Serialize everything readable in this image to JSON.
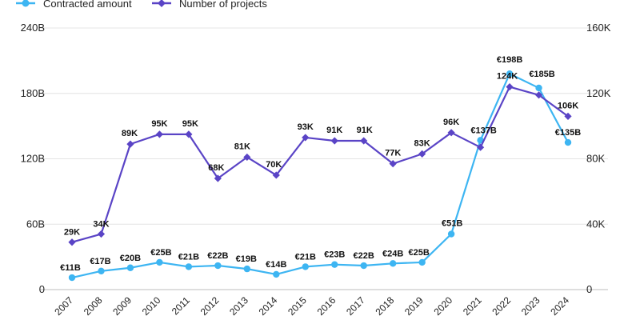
{
  "chart_data": {
    "type": "line",
    "title": "",
    "xlabel": "",
    "x": [
      "2007",
      "2008",
      "2009",
      "2010",
      "2011",
      "2012",
      "2013",
      "2014",
      "2015",
      "2016",
      "2017",
      "2018",
      "2019",
      "2020",
      "2021",
      "2022",
      "2023",
      "2024"
    ],
    "left_axis": {
      "min": 0,
      "max": 240,
      "ticks": [
        "0",
        "60B",
        "120B",
        "180B",
        "240B"
      ]
    },
    "right_axis": {
      "min": 0,
      "max": 160,
      "ticks": [
        "0",
        "40K",
        "80K",
        "120K",
        "160K"
      ]
    },
    "grid": true,
    "legend_position": "top-left",
    "series": [
      {
        "name": "Contracted amount",
        "axis": "left",
        "color": "#3db5f2",
        "marker": "circle",
        "values": [
          11,
          17,
          20,
          25,
          21,
          22,
          19,
          14,
          21,
          23,
          22,
          24,
          25,
          51,
          137,
          198,
          185,
          135
        ],
        "labels": [
          "€11B",
          "€17B",
          "€20B",
          "€25B",
          "€21B",
          "€22B",
          "€19B",
          "€14B",
          "€21B",
          "€23B",
          "€22B",
          "€24B",
          "€25B",
          "€51B",
          "€137B",
          "€198B",
          "€185B",
          "€135B"
        ]
      },
      {
        "name": "Number of projects",
        "axis": "right",
        "color": "#5a44c6",
        "marker": "diamond",
        "values": [
          29,
          34,
          89,
          95,
          95,
          68,
          81,
          70,
          93,
          91,
          91,
          77,
          83,
          96,
          87,
          124,
          119,
          106
        ],
        "labels": [
          "29K",
          "34K",
          "89K",
          "95K",
          "95K",
          "68K",
          "81K",
          "70K",
          "93K",
          "91K",
          "91K",
          "77K",
          "83K",
          "96K",
          "",
          "124K",
          "",
          "106K"
        ]
      }
    ]
  }
}
